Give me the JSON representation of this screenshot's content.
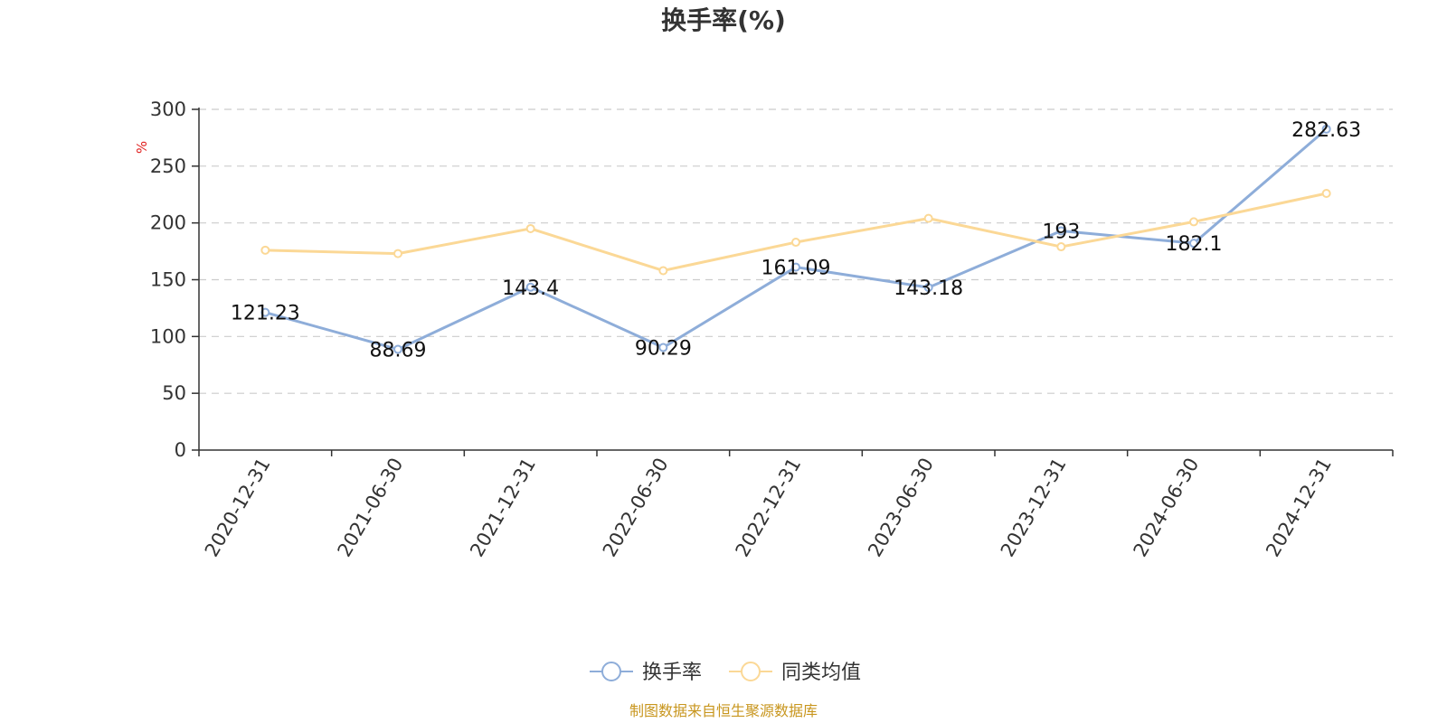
{
  "chart_data": {
    "type": "line",
    "title": "换手率(%)",
    "ylabel": "%",
    "xlabel": "",
    "ylim": [
      0,
      300
    ],
    "yticks": [
      0,
      50,
      100,
      150,
      200,
      250,
      300
    ],
    "grid": true,
    "categories": [
      "2020-12-31",
      "2021-06-30",
      "2021-12-31",
      "2022-06-30",
      "2022-12-31",
      "2023-06-30",
      "2023-12-31",
      "2024-06-30",
      "2024-12-31"
    ],
    "series": [
      {
        "name": "换手率",
        "color": "#8eadd9",
        "show_labels": true,
        "values": [
          121.23,
          88.69,
          143.4,
          90.29,
          161.09,
          143.18,
          193,
          182.1,
          282.63
        ]
      },
      {
        "name": "同类均值",
        "color": "#fbd896",
        "show_labels": false,
        "values": [
          176,
          173,
          195,
          158,
          183,
          204,
          179,
          201,
          226
        ]
      }
    ],
    "legend_position": "bottom-center",
    "source": "制图数据来自恒生聚源数据库"
  }
}
